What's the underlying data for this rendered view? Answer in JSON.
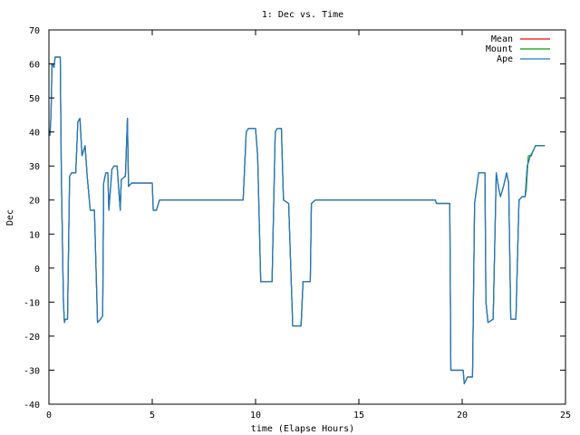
{
  "chart_data": {
    "type": "line",
    "title": "1: Dec vs. Time",
    "xlabel": "time (Elapse Hours)",
    "ylabel": "Dec",
    "xlim": [
      0,
      25
    ],
    "ylim": [
      -40,
      70
    ],
    "xticks": [
      0,
      5,
      10,
      15,
      20,
      25
    ],
    "yticks": [
      -40,
      -30,
      -20,
      -10,
      0,
      10,
      20,
      30,
      40,
      50,
      60,
      70
    ],
    "grid": false,
    "legend_position": "top-right",
    "series": [
      {
        "name": "Mean",
        "color": "#ff0000",
        "points": [
          [
            0,
            39
          ],
          [
            0.05,
            39
          ],
          [
            0.1,
            45
          ],
          [
            0.15,
            60
          ],
          [
            0.25,
            59
          ],
          [
            0.3,
            62
          ],
          [
            0.55,
            62
          ],
          [
            0.6,
            27
          ],
          [
            0.7,
            -10
          ],
          [
            0.75,
            -16
          ],
          [
            0.8,
            -15
          ],
          [
            0.9,
            -15
          ],
          [
            1.0,
            27
          ],
          [
            1.1,
            28
          ],
          [
            1.3,
            28
          ],
          [
            1.4,
            43
          ],
          [
            1.5,
            44
          ],
          [
            1.6,
            33
          ],
          [
            1.75,
            36
          ],
          [
            1.85,
            27
          ],
          [
            2.0,
            17
          ],
          [
            2.2,
            17
          ],
          [
            2.35,
            -16
          ],
          [
            2.5,
            -15
          ],
          [
            2.6,
            -14
          ],
          [
            2.65,
            25
          ],
          [
            2.75,
            28
          ],
          [
            2.85,
            28
          ],
          [
            2.9,
            17
          ],
          [
            3.05,
            29
          ],
          [
            3.15,
            30
          ],
          [
            3.3,
            30
          ],
          [
            3.45,
            17
          ],
          [
            3.5,
            26
          ],
          [
            3.7,
            27
          ],
          [
            3.8,
            44
          ],
          [
            3.85,
            24
          ],
          [
            4.0,
            25
          ],
          [
            5.0,
            25
          ],
          [
            5.05,
            17
          ],
          [
            5.2,
            17
          ],
          [
            5.35,
            20
          ],
          [
            9.4,
            20
          ],
          [
            9.55,
            40
          ],
          [
            9.65,
            41
          ],
          [
            10.0,
            41
          ],
          [
            10.1,
            33
          ],
          [
            10.25,
            -4
          ],
          [
            10.35,
            -4
          ],
          [
            10.8,
            -4
          ],
          [
            10.95,
            40
          ],
          [
            11.05,
            41
          ],
          [
            11.25,
            41
          ],
          [
            11.35,
            20
          ],
          [
            11.6,
            19
          ],
          [
            11.8,
            -17
          ],
          [
            12.0,
            -17
          ],
          [
            12.2,
            -17
          ],
          [
            12.3,
            -4
          ],
          [
            12.5,
            -4
          ],
          [
            12.65,
            -4
          ],
          [
            12.7,
            19
          ],
          [
            12.9,
            20
          ],
          [
            18.7,
            20
          ],
          [
            18.75,
            19
          ],
          [
            19.4,
            19
          ],
          [
            19.45,
            -30
          ],
          [
            19.85,
            -30
          ],
          [
            20.05,
            -30
          ],
          [
            20.1,
            -34
          ],
          [
            20.25,
            -32
          ],
          [
            20.5,
            -32
          ],
          [
            20.6,
            19
          ],
          [
            20.8,
            28
          ],
          [
            21.1,
            28
          ],
          [
            21.15,
            -10
          ],
          [
            21.25,
            -16
          ],
          [
            21.5,
            -15
          ],
          [
            21.65,
            28
          ],
          [
            21.75,
            24
          ],
          [
            21.85,
            21
          ],
          [
            22.0,
            24
          ],
          [
            22.15,
            28
          ],
          [
            22.25,
            25
          ],
          [
            22.35,
            -15
          ],
          [
            22.6,
            -15
          ],
          [
            22.75,
            20
          ],
          [
            22.9,
            21
          ],
          [
            23.05,
            21
          ],
          [
            23.15,
            30
          ],
          [
            23.3,
            33
          ],
          [
            23.4,
            34
          ],
          [
            23.55,
            36
          ],
          [
            24.0,
            36
          ]
        ]
      },
      {
        "name": "Mount",
        "color": "#00a000",
        "points": [
          [
            0,
            39
          ],
          [
            0.05,
            39
          ],
          [
            0.1,
            45
          ],
          [
            0.15,
            60
          ],
          [
            0.25,
            59
          ],
          [
            0.3,
            62
          ],
          [
            0.55,
            62
          ],
          [
            0.6,
            27
          ],
          [
            0.7,
            -10
          ],
          [
            0.75,
            -16
          ],
          [
            0.8,
            -15
          ],
          [
            0.9,
            -15
          ],
          [
            1.0,
            27
          ],
          [
            1.1,
            28
          ],
          [
            1.3,
            28
          ],
          [
            1.4,
            43
          ],
          [
            1.5,
            44
          ],
          [
            1.6,
            33
          ],
          [
            1.75,
            36
          ],
          [
            1.85,
            27
          ],
          [
            2.0,
            17
          ],
          [
            2.2,
            17
          ],
          [
            2.35,
            -16
          ],
          [
            2.5,
            -15
          ],
          [
            2.6,
            -14
          ],
          [
            2.65,
            25
          ],
          [
            2.75,
            28
          ],
          [
            2.85,
            28
          ],
          [
            2.9,
            17
          ],
          [
            3.05,
            29
          ],
          [
            3.15,
            30
          ],
          [
            3.3,
            30
          ],
          [
            3.45,
            17
          ],
          [
            3.5,
            26
          ],
          [
            3.7,
            27
          ],
          [
            3.8,
            44
          ],
          [
            3.85,
            24
          ],
          [
            4.0,
            25
          ],
          [
            5.0,
            25
          ],
          [
            5.05,
            17
          ],
          [
            5.2,
            17
          ],
          [
            5.35,
            20
          ],
          [
            9.4,
            20
          ],
          [
            9.55,
            40
          ],
          [
            9.65,
            41
          ],
          [
            10.0,
            41
          ],
          [
            10.1,
            33
          ],
          [
            10.25,
            -4
          ],
          [
            10.35,
            -4
          ],
          [
            10.8,
            -4
          ],
          [
            10.95,
            40
          ],
          [
            11.05,
            41
          ],
          [
            11.25,
            41
          ],
          [
            11.35,
            20
          ],
          [
            11.6,
            19
          ],
          [
            11.8,
            -17
          ],
          [
            12.0,
            -17
          ],
          [
            12.2,
            -17
          ],
          [
            12.3,
            -4
          ],
          [
            12.5,
            -4
          ],
          [
            12.65,
            -4
          ],
          [
            12.7,
            19
          ],
          [
            12.9,
            20
          ],
          [
            18.7,
            20
          ],
          [
            18.75,
            19
          ],
          [
            19.4,
            19
          ],
          [
            19.45,
            -30
          ],
          [
            19.85,
            -30
          ],
          [
            20.05,
            -30
          ],
          [
            20.1,
            -34
          ],
          [
            20.25,
            -32
          ],
          [
            20.5,
            -32
          ],
          [
            20.6,
            19
          ],
          [
            20.8,
            28
          ],
          [
            21.1,
            28
          ],
          [
            21.15,
            -10
          ],
          [
            21.25,
            -16
          ],
          [
            21.5,
            -15
          ],
          [
            21.65,
            28
          ],
          [
            21.75,
            24
          ],
          [
            21.85,
            21
          ],
          [
            22.0,
            24
          ],
          [
            22.15,
            28
          ],
          [
            22.25,
            25
          ],
          [
            22.35,
            -15
          ],
          [
            22.6,
            -15
          ],
          [
            22.75,
            20
          ],
          [
            22.9,
            21
          ],
          [
            23.05,
            21
          ],
          [
            23.1,
            23
          ],
          [
            23.2,
            33
          ],
          [
            23.35,
            33
          ],
          [
            23.4,
            34
          ],
          [
            23.55,
            36
          ],
          [
            24.0,
            36
          ]
        ]
      },
      {
        "name": "Ape",
        "color": "#1f77d0",
        "points": [
          [
            0,
            39
          ],
          [
            0.05,
            39
          ],
          [
            0.1,
            45
          ],
          [
            0.15,
            60
          ],
          [
            0.25,
            59
          ],
          [
            0.3,
            62
          ],
          [
            0.55,
            62
          ],
          [
            0.6,
            27
          ],
          [
            0.7,
            -10
          ],
          [
            0.75,
            -16
          ],
          [
            0.8,
            -15
          ],
          [
            0.9,
            -15
          ],
          [
            1.0,
            27
          ],
          [
            1.1,
            28
          ],
          [
            1.3,
            28
          ],
          [
            1.4,
            43
          ],
          [
            1.5,
            44
          ],
          [
            1.6,
            33
          ],
          [
            1.75,
            36
          ],
          [
            1.85,
            27
          ],
          [
            2.0,
            17
          ],
          [
            2.2,
            17
          ],
          [
            2.35,
            -16
          ],
          [
            2.5,
            -15
          ],
          [
            2.6,
            -14
          ],
          [
            2.65,
            25
          ],
          [
            2.75,
            28
          ],
          [
            2.85,
            28
          ],
          [
            2.9,
            17
          ],
          [
            3.05,
            29
          ],
          [
            3.15,
            30
          ],
          [
            3.3,
            30
          ],
          [
            3.45,
            17
          ],
          [
            3.5,
            26
          ],
          [
            3.7,
            27
          ],
          [
            3.8,
            44
          ],
          [
            3.85,
            24
          ],
          [
            4.0,
            25
          ],
          [
            5.0,
            25
          ],
          [
            5.05,
            17
          ],
          [
            5.2,
            17
          ],
          [
            5.35,
            20
          ],
          [
            9.4,
            20
          ],
          [
            9.55,
            40
          ],
          [
            9.65,
            41
          ],
          [
            10.0,
            41
          ],
          [
            10.1,
            33
          ],
          [
            10.25,
            -4
          ],
          [
            10.35,
            -4
          ],
          [
            10.8,
            -4
          ],
          [
            10.95,
            40
          ],
          [
            11.05,
            41
          ],
          [
            11.25,
            41
          ],
          [
            11.35,
            20
          ],
          [
            11.6,
            19
          ],
          [
            11.8,
            -17
          ],
          [
            12.0,
            -17
          ],
          [
            12.2,
            -17
          ],
          [
            12.3,
            -4
          ],
          [
            12.5,
            -4
          ],
          [
            12.65,
            -4
          ],
          [
            12.7,
            19
          ],
          [
            12.9,
            20
          ],
          [
            18.7,
            20
          ],
          [
            18.75,
            19
          ],
          [
            19.4,
            19
          ],
          [
            19.45,
            -30
          ],
          [
            19.85,
            -30
          ],
          [
            20.05,
            -30
          ],
          [
            20.1,
            -34
          ],
          [
            20.25,
            -32
          ],
          [
            20.5,
            -32
          ],
          [
            20.6,
            19
          ],
          [
            20.8,
            28
          ],
          [
            21.1,
            28
          ],
          [
            21.15,
            -10
          ],
          [
            21.25,
            -16
          ],
          [
            21.5,
            -15
          ],
          [
            21.65,
            28
          ],
          [
            21.75,
            24
          ],
          [
            21.85,
            21
          ],
          [
            22.0,
            24
          ],
          [
            22.15,
            28
          ],
          [
            22.25,
            25
          ],
          [
            22.35,
            -15
          ],
          [
            22.6,
            -15
          ],
          [
            22.75,
            20
          ],
          [
            22.9,
            21
          ],
          [
            23.05,
            21
          ],
          [
            23.15,
            30
          ],
          [
            23.3,
            33
          ],
          [
            23.4,
            34
          ],
          [
            23.55,
            36
          ],
          [
            24.0,
            36
          ]
        ]
      }
    ]
  }
}
